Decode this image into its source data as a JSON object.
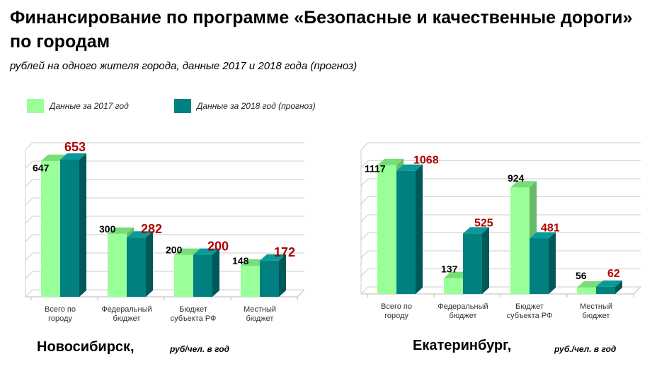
{
  "title": "Финансирование по программе  «Безопасные и качественные дороги»  по городам",
  "subtitle": "рублей на одного жителя города, данные 2017 и 2018 года (прогноз)",
  "legend": [
    {
      "label": "Данные за 2017 год",
      "color": "#99ff99"
    },
    {
      "label": "Данные за 2018 год (прогноз)",
      "color": "#008080"
    }
  ],
  "chart_data": [
    {
      "type": "bar",
      "city": "Новосибирск,",
      "unit": "руб/чел. в год",
      "categories": [
        "Всего по городу",
        "Федеральный бюджет",
        "Бюджет субъекта РФ",
        "Местный бюджет"
      ],
      "category_lines": [
        [
          "Всего по",
          "городу"
        ],
        [
          "Федеральный",
          "бюджет"
        ],
        [
          "Бюджет",
          "субъекта РФ"
        ],
        [
          "Местный",
          "бюджет"
        ]
      ],
      "series": [
        {
          "name": "Данные за 2017 год",
          "values": [
            647,
            300,
            200,
            148
          ]
        },
        {
          "name": "Данные за 2018 год (прогноз)",
          "values": [
            653,
            282,
            200,
            172
          ]
        }
      ],
      "value_labels": [
        [
          "647",
          "300",
          "200",
          "148"
        ],
        [
          "653",
          "282",
          "200",
          "172"
        ]
      ],
      "ylim": [
        0,
        700
      ],
      "grid": true,
      "legend_position": "top-left"
    },
    {
      "type": "bar",
      "city": "Екатеринбург,",
      "unit": "руб./чел. в год",
      "categories": [
        "Всего по городу",
        "Федеральный бюджет",
        "Бюджет субъекта РФ",
        "Местный бюджет"
      ],
      "category_lines": [
        [
          "Всего по",
          "городу"
        ],
        [
          "Федеральный",
          "бюджет"
        ],
        [
          "Бюджет",
          "субъекта РФ"
        ],
        [
          "Местный",
          "бюджет"
        ]
      ],
      "series": [
        {
          "name": "Данные за 2017 год",
          "values": [
            1117,
            137,
            924,
            56
          ]
        },
        {
          "name": "Данные за 2018 год (прогноз)",
          "values": [
            1068,
            525,
            481,
            62
          ]
        }
      ],
      "value_labels": [
        [
          "1117",
          "137",
          "924",
          "56"
        ],
        [
          "1068",
          "525",
          "481",
          "62"
        ]
      ],
      "ylim": [
        0,
        1250
      ],
      "grid": true,
      "legend_position": "top-left"
    }
  ]
}
